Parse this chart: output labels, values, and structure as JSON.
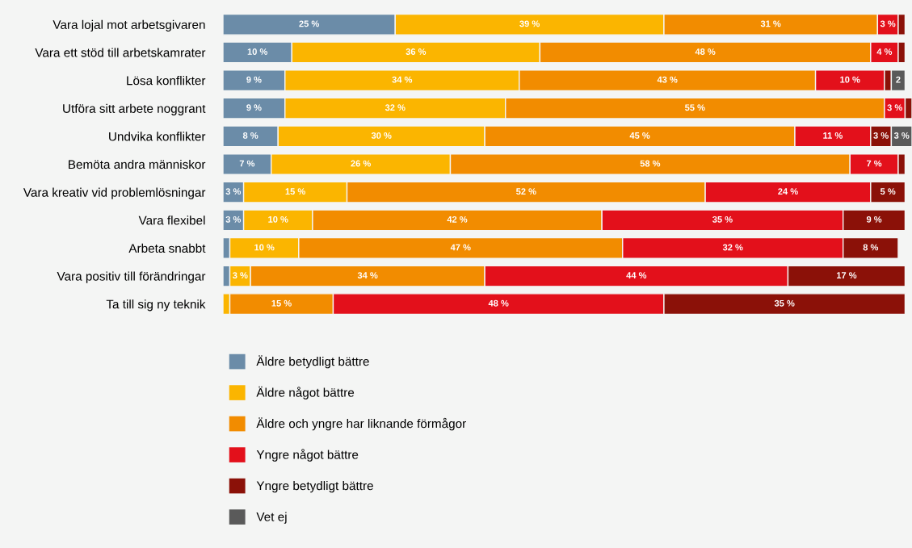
{
  "chart_data": {
    "type": "bar",
    "orientation": "horizontal",
    "stacked": true,
    "categories": [
      "Vara lojal mot arbetsgivaren",
      "Vara ett stöd till arbetskamrater",
      "Lösa konflikter",
      "Utföra sitt arbete noggrant",
      "Undvika konflikter",
      "Bemöta andra människor",
      "Vara kreativ vid problemlösningar",
      "Vara flexibel",
      "Arbeta snabbt",
      "Vara positiv till förändringar",
      "Ta till sig ny teknik"
    ],
    "xlim": [
      0,
      100
    ],
    "tick_labels": "y",
    "legend": "bottom",
    "grid": false,
    "series": [
      {
        "name": "Äldre betydligt bättre",
        "color": "#6b8ca8",
        "values": [
          25,
          10,
          9,
          9,
          8,
          7,
          3,
          3,
          1,
          1,
          null
        ],
        "value_labels": [
          "25 %",
          "10 %",
          "9 %",
          "9 %",
          "8 %",
          "7 %",
          "3 %",
          "3 %",
          null,
          null,
          null
        ]
      },
      {
        "name": "Äldre något bättre",
        "color": "#fbb500",
        "values": [
          39,
          36,
          34,
          32,
          30,
          26,
          15,
          10,
          10,
          3,
          1
        ],
        "value_labels": [
          "39 %",
          "36 %",
          "34 %",
          "32 %",
          "30 %",
          "26 %",
          "15 %",
          "10 %",
          "10 %",
          "3 %",
          null
        ]
      },
      {
        "name": "Äldre och yngre har liknande förmågor",
        "color": "#f28c00",
        "values": [
          31,
          48,
          43,
          55,
          45,
          58,
          52,
          42,
          47,
          34,
          15
        ],
        "value_labels": [
          "31 %",
          "48 %",
          "43 %",
          "55 %",
          "45 %",
          "58 %",
          "52 %",
          "42 %",
          "47 %",
          "34 %",
          "15 %"
        ]
      },
      {
        "name": "Yngre något bättre",
        "color": "#e3101b",
        "values": [
          3,
          4,
          10,
          3,
          11,
          7,
          24,
          35,
          32,
          44,
          48
        ],
        "value_labels": [
          "3 %",
          "4 %",
          "10 %",
          "3 %",
          "11 %",
          "7 %",
          "24 %",
          "35 %",
          "32 %",
          "44 %",
          "48 %"
        ]
      },
      {
        "name": "Yngre betydligt bättre",
        "color": "#8b1108",
        "values": [
          1,
          1,
          1,
          1,
          3,
          1,
          5,
          9,
          8,
          17,
          35
        ],
        "value_labels": [
          null,
          null,
          null,
          null,
          "3 %",
          null,
          "5 %",
          "9 %",
          "8 %",
          "17 %",
          "35 %"
        ]
      },
      {
        "name": "Vet ej",
        "color": "#5a5a5a",
        "values": [
          null,
          null,
          2,
          null,
          3,
          null,
          null,
          null,
          null,
          null,
          null
        ],
        "value_labels": [
          null,
          null,
          "2",
          null,
          "3 %",
          null,
          null,
          null,
          null,
          null,
          null
        ]
      }
    ]
  }
}
